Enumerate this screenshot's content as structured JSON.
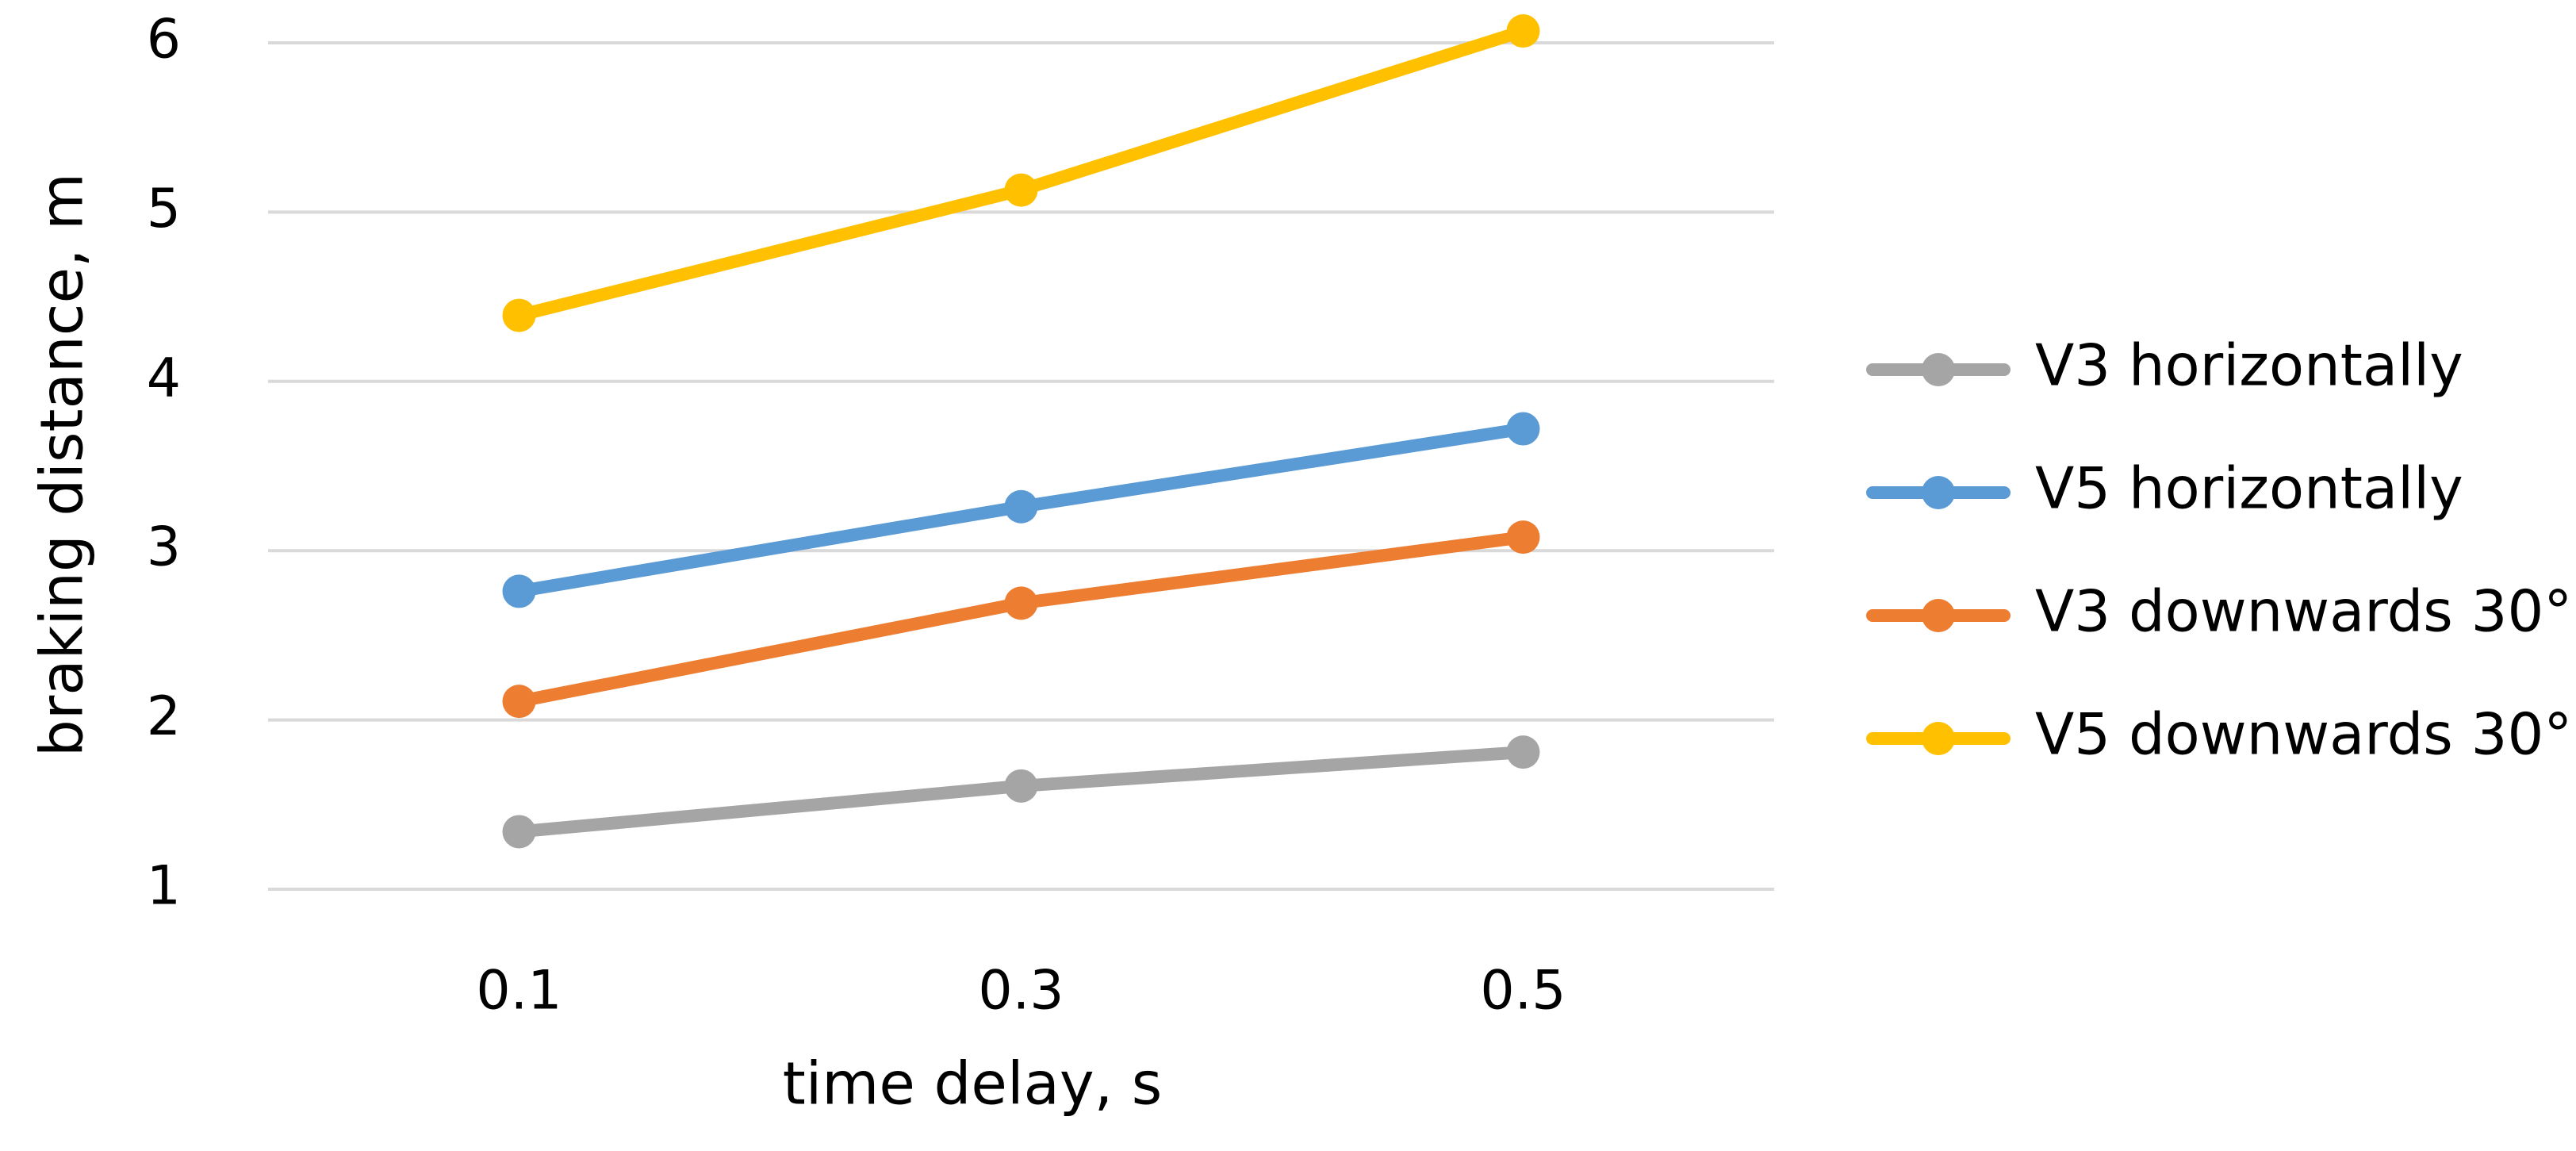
{
  "chart_data": {
    "type": "line",
    "x_label": "time delay, s",
    "y_label": "braking distance, m",
    "categories": [
      "0.1",
      "0.3",
      "0.5"
    ],
    "series": [
      {
        "name": "V3 horizontally",
        "color": "#a5a5a5",
        "values": [
          1.34,
          1.61,
          1.81
        ]
      },
      {
        "name": "V5 horizontally",
        "color": "#5b9bd5",
        "values": [
          2.76,
          3.26,
          3.72
        ]
      },
      {
        "name": "V3 downwards 30°",
        "color": "#ed7d31",
        "values": [
          2.11,
          2.69,
          3.08
        ]
      },
      {
        "name": "V5 downwards 30°",
        "color": "#ffc000",
        "values": [
          4.39,
          5.13,
          6.07
        ]
      }
    ],
    "ylim": [
      1,
      6
    ],
    "yticks": [
      1,
      2,
      3,
      4,
      5,
      6
    ],
    "grid": true,
    "legend": "right"
  }
}
